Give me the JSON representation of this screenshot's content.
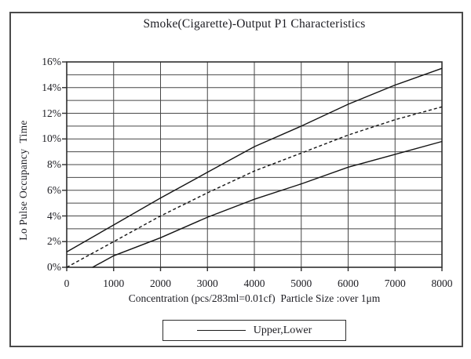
{
  "window": {
    "background": "#ffffff",
    "border_color": "#4a4a4a"
  },
  "title": "Smoke(Cigarette)-Output P1 Characteristics",
  "colors": {
    "text": "#1c1c22",
    "grid": "#474747",
    "frame": "#2e2e2e",
    "curve": "#141414"
  },
  "chart_data": {
    "type": "line",
    "title": "Smoke(Cigarette)-Output P1 Characteristics",
    "xlabel": "Concentration (pcs/283ml=0.01cf)  Particle Size :over 1μm",
    "ylabel": "Lo Pulse Occupancy  Time",
    "xlim": [
      0,
      8000
    ],
    "ylim_percent": [
      0,
      16
    ],
    "x_ticks": [
      0,
      1000,
      2000,
      3000,
      4000,
      5000,
      6000,
      7000,
      8000
    ],
    "y_ticks_percent": [
      0,
      2,
      4,
      6,
      8,
      10,
      12,
      14,
      16
    ],
    "y_tick_labels": [
      "0%",
      "2%",
      "4%",
      "6%",
      "8%",
      "10%",
      "12%",
      "14%",
      "16%"
    ],
    "grid": "on",
    "grid_step_y_percent": 1,
    "grid_step_x": 1000,
    "legend": {
      "label": "Upper,Lower",
      "position": "bottom-center",
      "sample_style": "solid"
    },
    "series": [
      {
        "name": "upper",
        "style": "solid",
        "color": "#141414",
        "points": [
          [
            0,
            1.2
          ],
          [
            1000,
            3.3
          ],
          [
            2000,
            5.4
          ],
          [
            3000,
            7.4
          ],
          [
            4000,
            9.4
          ],
          [
            5000,
            11.0
          ],
          [
            6000,
            12.7
          ],
          [
            7000,
            14.2
          ],
          [
            8000,
            15.5
          ]
        ]
      },
      {
        "name": "middle (dashed)",
        "style": "dashed",
        "color": "#141414",
        "points": [
          [
            0,
            0.0
          ],
          [
            1000,
            2.0
          ],
          [
            2000,
            4.0
          ],
          [
            3000,
            5.8
          ],
          [
            4000,
            7.5
          ],
          [
            5000,
            8.9
          ],
          [
            6000,
            10.3
          ],
          [
            7000,
            11.5
          ],
          [
            8000,
            12.5
          ]
        ]
      },
      {
        "name": "lower",
        "style": "solid",
        "color": "#141414",
        "points": [
          [
            550,
            0.0
          ],
          [
            1000,
            0.9
          ],
          [
            2000,
            2.3
          ],
          [
            3000,
            3.9
          ],
          [
            4000,
            5.3
          ],
          [
            5000,
            6.5
          ],
          [
            6000,
            7.8
          ],
          [
            7000,
            8.8
          ],
          [
            8000,
            9.8
          ]
        ]
      }
    ]
  }
}
